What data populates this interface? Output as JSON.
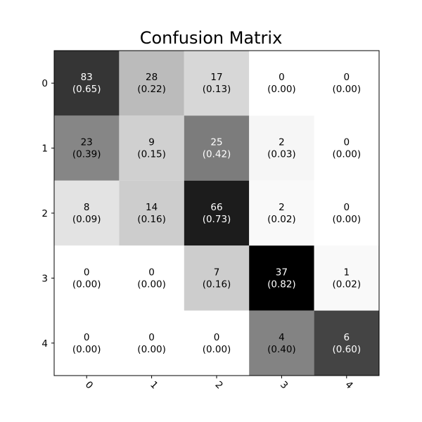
{
  "chart_data": {
    "type": "heatmap",
    "title": "Confusion Matrix",
    "row_labels": [
      "0",
      "1",
      "2",
      "3",
      "4"
    ],
    "col_labels": [
      "0",
      "1",
      "2",
      "3",
      "4"
    ],
    "counts": [
      [
        83,
        28,
        17,
        0,
        0
      ],
      [
        23,
        9,
        25,
        2,
        0
      ],
      [
        8,
        14,
        66,
        2,
        0
      ],
      [
        0,
        0,
        7,
        37,
        1
      ],
      [
        0,
        0,
        0,
        4,
        6
      ]
    ],
    "normalized": [
      [
        "0.65",
        "0.22",
        "0.13",
        "0.00",
        "0.00"
      ],
      [
        "0.39",
        "0.15",
        "0.42",
        "0.03",
        "0.00"
      ],
      [
        "0.09",
        "0.16",
        "0.73",
        "0.02",
        "0.00"
      ],
      [
        "0.00",
        "0.00",
        "0.16",
        "0.82",
        "0.02"
      ],
      [
        "0.00",
        "0.00",
        "0.00",
        "0.40",
        "0.60"
      ]
    ],
    "colormap": "Greys",
    "color_range": [
      0,
      0.82
    ],
    "x_tick_rotation_deg": 45,
    "grid": false,
    "legend": "none"
  }
}
